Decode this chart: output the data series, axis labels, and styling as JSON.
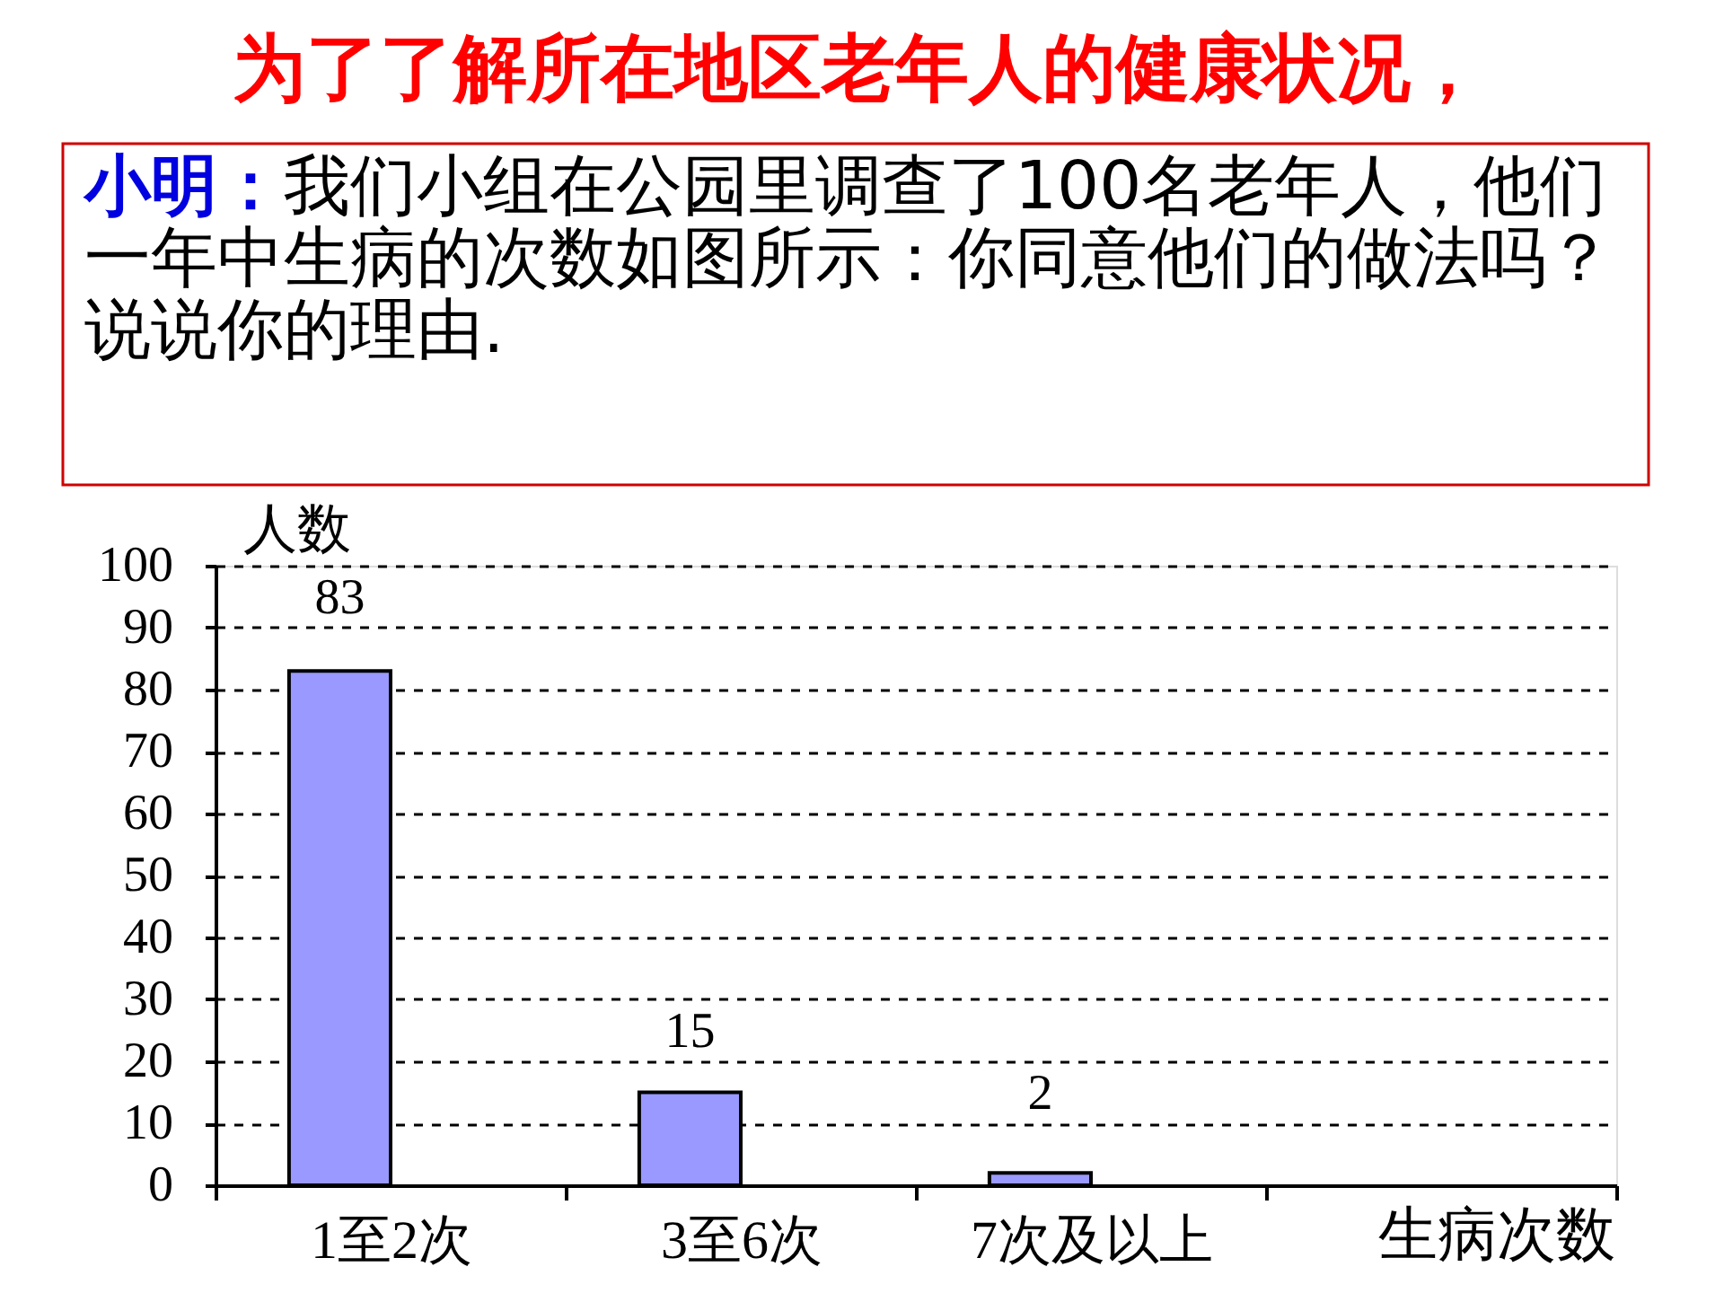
{
  "chart_data": {
    "type": "bar",
    "title": "为了了解所在地区老年人的健康状况，",
    "annotations": [
      "小明：",
      "我们小组在公园里调查了100名老年人，他们",
      "一年中生病的次数如图所示：你同意他们的做法吗？",
      "说说你的理由."
    ],
    "xlabel": "生病次数",
    "ylabel": "人数",
    "categories": [
      "1至2次",
      "3至6次",
      "7次及以上",
      null
    ],
    "values": [
      83,
      15,
      2,
      null
    ],
    "color": "#9999ff",
    "ylim": [
      0,
      100
    ],
    "yticks": [
      0,
      10,
      20,
      30,
      40,
      50,
      60,
      70,
      80,
      90,
      100
    ],
    "grid": "y",
    "data_labels": true
  }
}
